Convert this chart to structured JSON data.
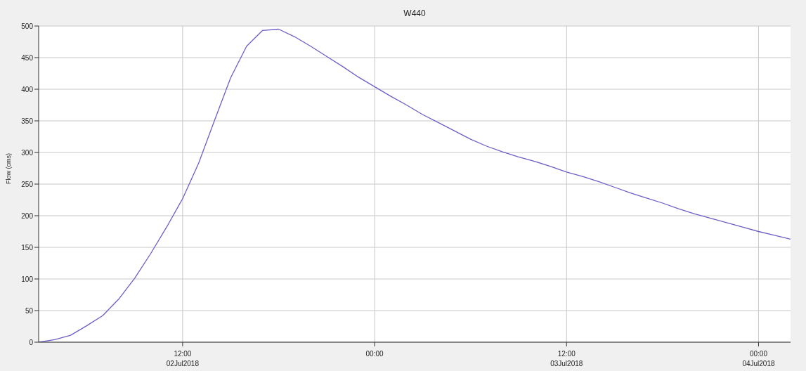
{
  "chart_data": {
    "type": "line",
    "title": "W440",
    "ylabel": "Flow (cms)",
    "x": [
      "2018-07-02T03:00",
      "2018-07-02T04:00",
      "2018-07-02T05:00",
      "2018-07-02T06:00",
      "2018-07-02T07:00",
      "2018-07-02T08:00",
      "2018-07-02T09:00",
      "2018-07-02T10:00",
      "2018-07-02T11:00",
      "2018-07-02T12:00",
      "2018-07-02T13:00",
      "2018-07-02T14:00",
      "2018-07-02T15:00",
      "2018-07-02T16:00",
      "2018-07-02T17:00",
      "2018-07-02T18:00",
      "2018-07-02T19:00",
      "2018-07-02T20:00",
      "2018-07-02T21:00",
      "2018-07-02T22:00",
      "2018-07-02T23:00",
      "2018-07-03T00:00",
      "2018-07-03T01:00",
      "2018-07-03T02:00",
      "2018-07-03T03:00",
      "2018-07-03T04:00",
      "2018-07-03T05:00",
      "2018-07-03T06:00",
      "2018-07-03T07:00",
      "2018-07-03T08:00",
      "2018-07-03T09:00",
      "2018-07-03T10:00",
      "2018-07-03T11:00",
      "2018-07-03T12:00",
      "2018-07-03T13:00",
      "2018-07-03T14:00",
      "2018-07-03T15:00",
      "2018-07-03T16:00",
      "2018-07-03T17:00",
      "2018-07-03T18:00",
      "2018-07-03T19:00",
      "2018-07-03T20:00",
      "2018-07-03T21:00",
      "2018-07-03T22:00",
      "2018-07-03T23:00",
      "2018-07-04T00:00",
      "2018-07-04T01:00",
      "2018-07-04T02:00"
    ],
    "series": [
      {
        "color": "#6b5fc7",
        "values": [
          0,
          4,
          11,
          26,
          42,
          68,
          101,
          140,
          182,
          227,
          283,
          351,
          418,
          468,
          493,
          495,
          483,
          468,
          452,
          436,
          419,
          404,
          389,
          375,
          360,
          347,
          334,
          321,
          310,
          301,
          293,
          286,
          278,
          269,
          262,
          254,
          245,
          236,
          228,
          220,
          211,
          203,
          196,
          189,
          182,
          175,
          169,
          163
        ]
      }
    ],
    "xlim": [
      "2018-07-02T03:00",
      "2018-07-04T02:00"
    ],
    "xticks": [
      {
        "value": "2018-07-02T12:00",
        "label": "12:00\n02Jul2018"
      },
      {
        "value": "2018-07-03T00:00",
        "label": "00:00"
      },
      {
        "value": "2018-07-03T12:00",
        "label": "12:00\n03Jul2018"
      },
      {
        "value": "2018-07-04T00:00",
        "label": "00:00\n04Jul2018"
      }
    ],
    "ylim": [
      0,
      500
    ],
    "yticks": [
      0,
      50,
      100,
      150,
      200,
      250,
      300,
      350,
      400,
      450,
      500
    ],
    "grid": true,
    "legend": false,
    "marker": "none",
    "line_style": "solid"
  }
}
